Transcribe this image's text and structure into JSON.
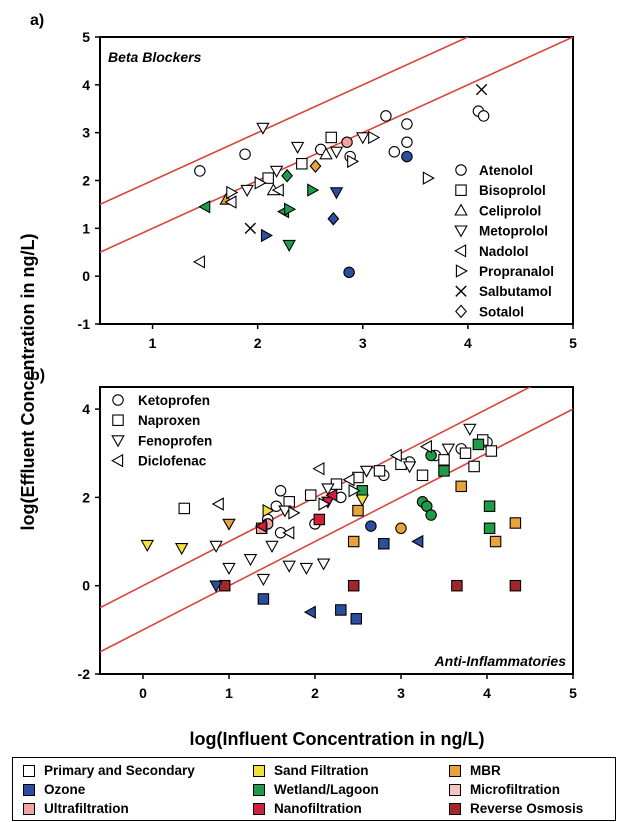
{
  "panel_labels": [
    "a)",
    "b)"
  ],
  "y_axis_label": "log(Effluent Concentration in ng/L)",
  "x_axis_label": "log(Influent Concentration in ng/L)",
  "treatment_colors": {
    "primary": "#ffffff",
    "ozone": "#2b4e9e",
    "ultra": "#f4a3a3",
    "sand": "#f1e23b",
    "wetland": "#1f9c4a",
    "nano": "#d0203c",
    "mbr": "#e8a33a",
    "micro": "#f5c3c3",
    "ro": "#a3262a"
  },
  "line_color": "#d9443a",
  "legend": [
    {
      "key": "primary",
      "label": "Primary and Secondary"
    },
    {
      "key": "sand",
      "label": "Sand Filtration"
    },
    {
      "key": "mbr",
      "label": "MBR"
    },
    {
      "key": "ozone",
      "label": "Ozone"
    },
    {
      "key": "wetland",
      "label": "Wetland/Lagoon"
    },
    {
      "key": "micro",
      "label": "Microfiltration"
    },
    {
      "key": "ultra",
      "label": "Ultrafiltration"
    },
    {
      "key": "nano",
      "label": "Nanofiltration"
    },
    {
      "key": "ro",
      "label": "Reverse Osmosis"
    }
  ],
  "chart_data": [
    {
      "type": "scatter",
      "title": "Beta Blockers",
      "xlim": [
        0.5,
        5
      ],
      "ylim": [
        -1,
        5
      ],
      "xticks": [
        1,
        2,
        3,
        4,
        5
      ],
      "yticks": [
        -1,
        0,
        1,
        2,
        3,
        4,
        5
      ],
      "reference_lines": [
        {
          "offset": 1
        },
        {
          "offset": 0
        }
      ],
      "series_legend": [
        {
          "marker": "circle",
          "name": "Atenolol"
        },
        {
          "marker": "square",
          "name": "Bisoprolol"
        },
        {
          "marker": "triangle-up",
          "name": "Celiprolol"
        },
        {
          "marker": "triangle-down",
          "name": "Metoprolol"
        },
        {
          "marker": "triangle-left",
          "name": "Nadolol"
        },
        {
          "marker": "triangle-right",
          "name": "Propranalol"
        },
        {
          "marker": "x",
          "name": "Salbutamol"
        },
        {
          "marker": "diamond",
          "name": "Sotalol"
        }
      ],
      "points": [
        {
          "x": 1.45,
          "y": 2.2,
          "m": "circle",
          "c": "primary"
        },
        {
          "x": 1.88,
          "y": 2.55,
          "m": "circle",
          "c": "primary"
        },
        {
          "x": 2.6,
          "y": 2.65,
          "m": "circle",
          "c": "primary"
        },
        {
          "x": 2.88,
          "y": 2.5,
          "m": "circle",
          "c": "primary"
        },
        {
          "x": 3.22,
          "y": 3.35,
          "m": "circle",
          "c": "primary"
        },
        {
          "x": 3.3,
          "y": 2.6,
          "m": "circle",
          "c": "primary"
        },
        {
          "x": 3.42,
          "y": 2.8,
          "m": "circle",
          "c": "primary"
        },
        {
          "x": 3.42,
          "y": 3.18,
          "m": "circle",
          "c": "primary"
        },
        {
          "x": 4.1,
          "y": 3.45,
          "m": "circle",
          "c": "primary"
        },
        {
          "x": 4.15,
          "y": 3.35,
          "m": "circle",
          "c": "primary"
        },
        {
          "x": 2.85,
          "y": 2.8,
          "m": "circle",
          "c": "ultra"
        },
        {
          "x": 3.42,
          "y": 2.5,
          "m": "circle",
          "c": "ozone"
        },
        {
          "x": 2.87,
          "y": 0.08,
          "m": "circle",
          "c": "ozone"
        },
        {
          "x": 2.1,
          "y": 2.05,
          "m": "square",
          "c": "primary"
        },
        {
          "x": 2.42,
          "y": 2.35,
          "m": "square",
          "c": "primary"
        },
        {
          "x": 2.7,
          "y": 2.9,
          "m": "square",
          "c": "primary"
        },
        {
          "x": 2.15,
          "y": 1.8,
          "m": "triangle-up",
          "c": "primary"
        },
        {
          "x": 2.65,
          "y": 2.55,
          "m": "triangle-up",
          "c": "primary"
        },
        {
          "x": 1.7,
          "y": 1.6,
          "m": "triangle-up",
          "c": "mbr"
        },
        {
          "x": 2.05,
          "y": 3.1,
          "m": "triangle-down",
          "c": "primary"
        },
        {
          "x": 1.9,
          "y": 1.8,
          "m": "triangle-down",
          "c": "primary"
        },
        {
          "x": 2.18,
          "y": 2.2,
          "m": "triangle-down",
          "c": "primary"
        },
        {
          "x": 2.38,
          "y": 2.7,
          "m": "triangle-down",
          "c": "primary"
        },
        {
          "x": 2.75,
          "y": 2.6,
          "m": "triangle-down",
          "c": "primary"
        },
        {
          "x": 3.0,
          "y": 2.9,
          "m": "triangle-down",
          "c": "primary"
        },
        {
          "x": 2.3,
          "y": 0.65,
          "m": "triangle-down",
          "c": "wetland"
        },
        {
          "x": 2.75,
          "y": 1.75,
          "m": "triangle-down",
          "c": "ozone"
        },
        {
          "x": 1.75,
          "y": 1.55,
          "m": "triangle-left",
          "c": "primary"
        },
        {
          "x": 2.2,
          "y": 1.8,
          "m": "triangle-left",
          "c": "primary"
        },
        {
          "x": 1.5,
          "y": 1.45,
          "m": "triangle-left",
          "c": "wetland"
        },
        {
          "x": 1.45,
          "y": 0.3,
          "m": "triangle-left",
          "c": "primary"
        },
        {
          "x": 2.25,
          "y": 1.35,
          "m": "triangle-left",
          "c": "wetland"
        },
        {
          "x": 1.75,
          "y": 1.75,
          "m": "triangle-right",
          "c": "primary"
        },
        {
          "x": 2.02,
          "y": 1.95,
          "m": "triangle-right",
          "c": "primary"
        },
        {
          "x": 2.9,
          "y": 2.4,
          "m": "triangle-right",
          "c": "primary"
        },
        {
          "x": 3.1,
          "y": 2.9,
          "m": "triangle-right",
          "c": "primary"
        },
        {
          "x": 3.62,
          "y": 2.05,
          "m": "triangle-right",
          "c": "primary"
        },
        {
          "x": 2.52,
          "y": 1.8,
          "m": "triangle-right",
          "c": "wetland"
        },
        {
          "x": 2.3,
          "y": 1.4,
          "m": "triangle-right",
          "c": "wetland"
        },
        {
          "x": 2.08,
          "y": 0.85,
          "m": "triangle-right",
          "c": "ozone"
        },
        {
          "x": 1.93,
          "y": 1.0,
          "m": "x",
          "c": "primary"
        },
        {
          "x": 4.13,
          "y": 3.9,
          "m": "x",
          "c": "primary"
        },
        {
          "x": 2.55,
          "y": 2.3,
          "m": "diamond",
          "c": "mbr"
        },
        {
          "x": 2.28,
          "y": 2.1,
          "m": "diamond",
          "c": "wetland"
        },
        {
          "x": 2.72,
          "y": 1.2,
          "m": "diamond",
          "c": "ozone"
        }
      ]
    },
    {
      "type": "scatter",
      "title": "Anti-Inflammatories",
      "xlim": [
        -0.5,
        5
      ],
      "ylim": [
        -2,
        4.5
      ],
      "xticks": [
        0,
        1,
        2,
        3,
        4,
        5
      ],
      "yticks": [
        -2,
        0,
        2,
        4
      ],
      "reference_lines": [
        {
          "offset": 0
        },
        {
          "offset": -1
        }
      ],
      "series_legend": [
        {
          "marker": "circle",
          "name": "Ketoprofen"
        },
        {
          "marker": "square",
          "name": "Naproxen"
        },
        {
          "marker": "triangle-down",
          "name": "Fenoprofen"
        },
        {
          "marker": "triangle-left",
          "name": "Diclofenac"
        }
      ],
      "points": [
        {
          "x": 1.6,
          "y": 2.15,
          "m": "circle",
          "c": "primary"
        },
        {
          "x": 1.55,
          "y": 1.8,
          "m": "circle",
          "c": "primary"
        },
        {
          "x": 1.45,
          "y": 1.5,
          "m": "circle",
          "c": "primary"
        },
        {
          "x": 1.6,
          "y": 1.2,
          "m": "circle",
          "c": "primary"
        },
        {
          "x": 2.0,
          "y": 1.4,
          "m": "circle",
          "c": "primary"
        },
        {
          "x": 2.3,
          "y": 2.0,
          "m": "circle",
          "c": "primary"
        },
        {
          "x": 2.8,
          "y": 2.5,
          "m": "circle",
          "c": "primary"
        },
        {
          "x": 3.1,
          "y": 2.8,
          "m": "circle",
          "c": "primary"
        },
        {
          "x": 3.4,
          "y": 2.95,
          "m": "circle",
          "c": "primary"
        },
        {
          "x": 3.7,
          "y": 3.1,
          "m": "circle",
          "c": "primary"
        },
        {
          "x": 4.0,
          "y": 3.25,
          "m": "circle",
          "c": "primary"
        },
        {
          "x": 2.65,
          "y": 1.35,
          "m": "circle",
          "c": "ozone"
        },
        {
          "x": 3.0,
          "y": 1.3,
          "m": "circle",
          "c": "mbr"
        },
        {
          "x": 3.25,
          "y": 1.9,
          "m": "circle",
          "c": "wetland"
        },
        {
          "x": 3.3,
          "y": 1.8,
          "m": "circle",
          "c": "wetland"
        },
        {
          "x": 3.35,
          "y": 1.6,
          "m": "circle",
          "c": "wetland"
        },
        {
          "x": 3.35,
          "y": 2.95,
          "m": "circle",
          "c": "wetland"
        },
        {
          "x": 1.45,
          "y": 1.4,
          "m": "circle",
          "c": "ultra"
        },
        {
          "x": 0.48,
          "y": 1.75,
          "m": "square",
          "c": "primary"
        },
        {
          "x": 1.7,
          "y": 1.9,
          "m": "square",
          "c": "primary"
        },
        {
          "x": 1.95,
          "y": 2.05,
          "m": "square",
          "c": "primary"
        },
        {
          "x": 2.25,
          "y": 2.3,
          "m": "square",
          "c": "primary"
        },
        {
          "x": 2.5,
          "y": 2.45,
          "m": "square",
          "c": "primary"
        },
        {
          "x": 2.75,
          "y": 2.6,
          "m": "square",
          "c": "primary"
        },
        {
          "x": 3.0,
          "y": 2.75,
          "m": "square",
          "c": "primary"
        },
        {
          "x": 3.25,
          "y": 2.5,
          "m": "square",
          "c": "primary"
        },
        {
          "x": 3.5,
          "y": 2.85,
          "m": "square",
          "c": "primary"
        },
        {
          "x": 3.75,
          "y": 3.0,
          "m": "square",
          "c": "primary"
        },
        {
          "x": 3.95,
          "y": 3.3,
          "m": "square",
          "c": "primary"
        },
        {
          "x": 4.05,
          "y": 3.05,
          "m": "square",
          "c": "primary"
        },
        {
          "x": 3.85,
          "y": 2.7,
          "m": "square",
          "c": "primary"
        },
        {
          "x": 1.38,
          "y": 1.3,
          "m": "square",
          "c": "ultra"
        },
        {
          "x": 1.4,
          "y": -0.3,
          "m": "square",
          "c": "ozone"
        },
        {
          "x": 2.3,
          "y": -0.55,
          "m": "square",
          "c": "ozone"
        },
        {
          "x": 2.48,
          "y": -0.75,
          "m": "square",
          "c": "ozone"
        },
        {
          "x": 2.8,
          "y": 0.95,
          "m": "square",
          "c": "ozone"
        },
        {
          "x": 2.45,
          "y": 1.0,
          "m": "square",
          "c": "mbr"
        },
        {
          "x": 4.1,
          "y": 1.0,
          "m": "square",
          "c": "mbr"
        },
        {
          "x": 4.33,
          "y": 1.42,
          "m": "square",
          "c": "mbr"
        },
        {
          "x": 3.7,
          "y": 2.25,
          "m": "square",
          "c": "mbr"
        },
        {
          "x": 2.5,
          "y": 1.7,
          "m": "square",
          "c": "mbr"
        },
        {
          "x": 2.55,
          "y": 2.15,
          "m": "square",
          "c": "wetland"
        },
        {
          "x": 3.9,
          "y": 3.2,
          "m": "square",
          "c": "wetland"
        },
        {
          "x": 4.03,
          "y": 1.8,
          "m": "square",
          "c": "wetland"
        },
        {
          "x": 4.03,
          "y": 1.3,
          "m": "square",
          "c": "wetland"
        },
        {
          "x": 3.5,
          "y": 2.6,
          "m": "square",
          "c": "wetland"
        },
        {
          "x": 2.45,
          "y": 0.0,
          "m": "square",
          "c": "ro"
        },
        {
          "x": 3.65,
          "y": 0.0,
          "m": "square",
          "c": "ro"
        },
        {
          "x": 4.33,
          "y": 0.0,
          "m": "square",
          "c": "ro"
        },
        {
          "x": 0.95,
          "y": 0.0,
          "m": "square",
          "c": "ro"
        },
        {
          "x": 2.05,
          "y": 1.5,
          "m": "square",
          "c": "nano"
        },
        {
          "x": 0.05,
          "y": 0.92,
          "m": "triangle-down",
          "c": "sand"
        },
        {
          "x": 0.45,
          "y": 0.85,
          "m": "triangle-down",
          "c": "sand"
        },
        {
          "x": 0.85,
          "y": 0.9,
          "m": "triangle-down",
          "c": "primary"
        },
        {
          "x": 1.0,
          "y": 0.4,
          "m": "triangle-down",
          "c": "primary"
        },
        {
          "x": 1.25,
          "y": 0.6,
          "m": "triangle-down",
          "c": "primary"
        },
        {
          "x": 1.4,
          "y": 0.15,
          "m": "triangle-down",
          "c": "primary"
        },
        {
          "x": 1.5,
          "y": 0.9,
          "m": "triangle-down",
          "c": "primary"
        },
        {
          "x": 1.7,
          "y": 0.45,
          "m": "triangle-down",
          "c": "primary"
        },
        {
          "x": 1.9,
          "y": 0.4,
          "m": "triangle-down",
          "c": "primary"
        },
        {
          "x": 2.1,
          "y": 0.5,
          "m": "triangle-down",
          "c": "primary"
        },
        {
          "x": 1.65,
          "y": 1.7,
          "m": "triangle-down",
          "c": "primary"
        },
        {
          "x": 2.15,
          "y": 2.2,
          "m": "triangle-down",
          "c": "primary"
        },
        {
          "x": 2.6,
          "y": 2.6,
          "m": "triangle-down",
          "c": "primary"
        },
        {
          "x": 3.1,
          "y": 2.7,
          "m": "triangle-down",
          "c": "primary"
        },
        {
          "x": 3.55,
          "y": 3.1,
          "m": "triangle-down",
          "c": "primary"
        },
        {
          "x": 3.8,
          "y": 3.55,
          "m": "triangle-down",
          "c": "primary"
        },
        {
          "x": 2.15,
          "y": 1.9,
          "m": "triangle-down",
          "c": "nano"
        },
        {
          "x": 1.0,
          "y": 1.4,
          "m": "triangle-down",
          "c": "mbr"
        },
        {
          "x": 2.55,
          "y": 1.95,
          "m": "triangle-down",
          "c": "sand"
        },
        {
          "x": 0.85,
          "y": 0.0,
          "m": "triangle-down",
          "c": "ozone"
        },
        {
          "x": 0.88,
          "y": 1.85,
          "m": "triangle-left",
          "c": "primary"
        },
        {
          "x": 1.7,
          "y": 1.2,
          "m": "triangle-left",
          "c": "primary"
        },
        {
          "x": 2.05,
          "y": 2.65,
          "m": "triangle-left",
          "c": "primary"
        },
        {
          "x": 2.4,
          "y": 2.4,
          "m": "triangle-left",
          "c": "primary"
        },
        {
          "x": 2.95,
          "y": 2.95,
          "m": "triangle-left",
          "c": "primary"
        },
        {
          "x": 3.3,
          "y": 3.15,
          "m": "triangle-left",
          "c": "primary"
        },
        {
          "x": 1.95,
          "y": -0.6,
          "m": "triangle-left",
          "c": "ozone"
        },
        {
          "x": 3.2,
          "y": 1.0,
          "m": "triangle-left",
          "c": "ozone"
        },
        {
          "x": 1.38,
          "y": 1.35,
          "m": "triangle-left",
          "c": "nano"
        },
        {
          "x": 2.2,
          "y": 2.05,
          "m": "triangle-left",
          "c": "nano"
        },
        {
          "x": 1.75,
          "y": 1.65,
          "m": "triangle-right",
          "c": "primary"
        },
        {
          "x": 2.1,
          "y": 1.85,
          "m": "triangle-right",
          "c": "primary"
        },
        {
          "x": 2.45,
          "y": 2.15,
          "m": "triangle-right",
          "c": "primary"
        },
        {
          "x": 1.45,
          "y": 1.7,
          "m": "triangle-right",
          "c": "sand"
        }
      ]
    }
  ]
}
